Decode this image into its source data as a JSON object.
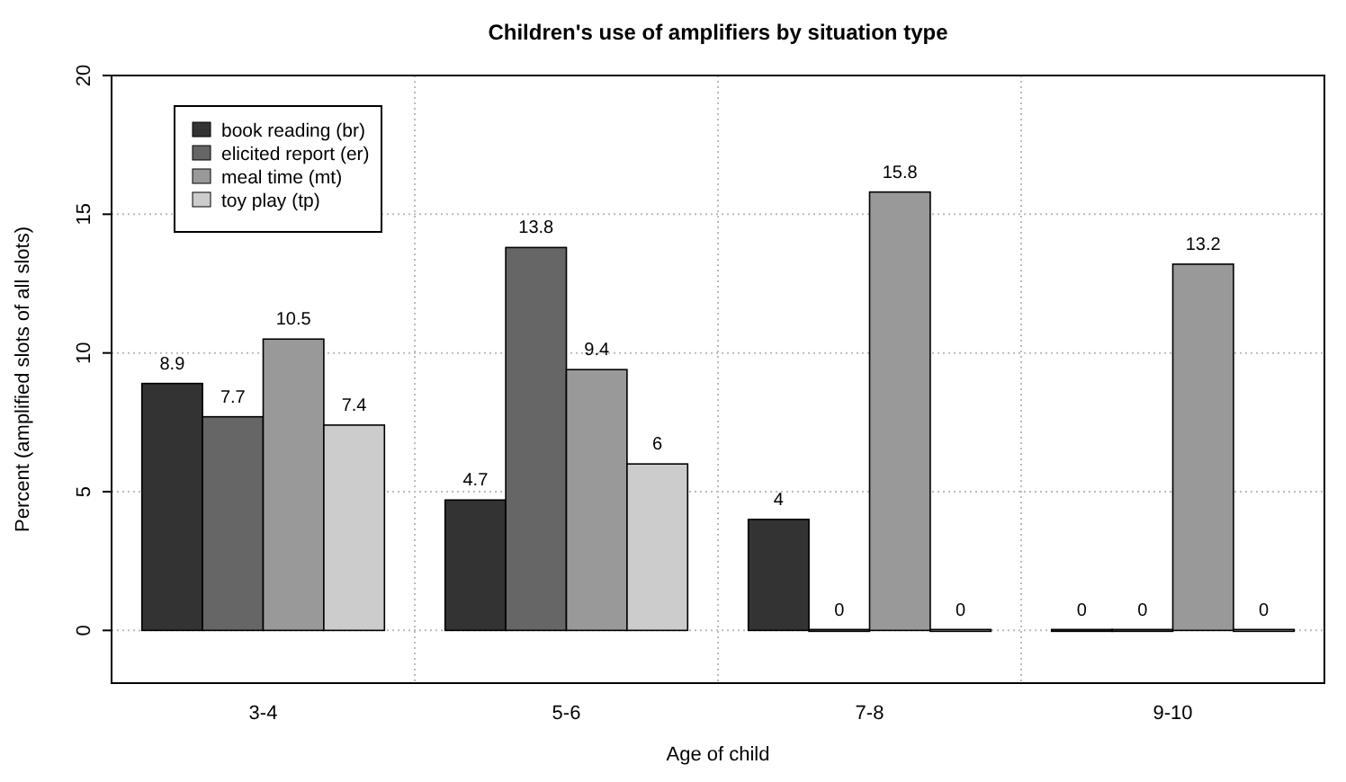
{
  "chart_data": {
    "type": "bar",
    "title": "Children's use of amplifiers by situation type",
    "xlabel": "Age of child",
    "ylabel": "Percent (amplified slots of all slots)",
    "categories": [
      "3-4",
      "5-6",
      "7-8",
      "9-10"
    ],
    "series": [
      {
        "name": "book reading (br)",
        "color": "#333333",
        "values": [
          8.9,
          4.7,
          4,
          0
        ]
      },
      {
        "name": "elicited report (er)",
        "color": "#666666",
        "values": [
          7.7,
          13.8,
          0,
          0
        ]
      },
      {
        "name": "meal time (mt)",
        "color": "#999999",
        "values": [
          10.5,
          9.4,
          15.8,
          13.2
        ]
      },
      {
        "name": "toy play (tp)",
        "color": "#cccccc",
        "values": [
          7.4,
          6,
          0,
          0
        ]
      }
    ],
    "ylim": [
      -1.9,
      20
    ],
    "yticks": [
      0,
      5,
      10,
      15,
      20
    ],
    "grid": true,
    "legend": "top left",
    "data_labels": true
  }
}
